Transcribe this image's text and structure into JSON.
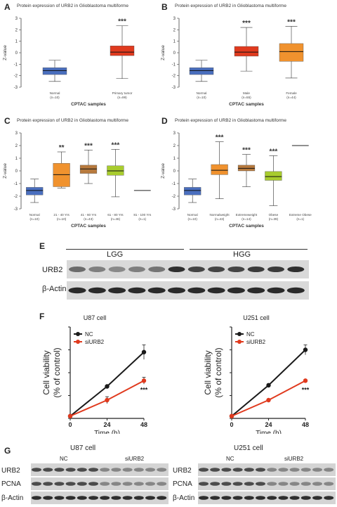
{
  "box_panels": [
    {
      "letter": "A",
      "title": "Protein expression of URB2 in Glioblastoma multiforme",
      "xlabel": "CPTAC samples",
      "ylabel": "Z-value",
      "groups": [
        {
          "label": "Normal",
          "n": "(n=10)",
          "color": "#4a6fbf",
          "q1": -1.9,
          "med": -1.55,
          "q3": -1.3,
          "lo": -2.5,
          "hi": -0.65,
          "sig": ""
        },
        {
          "label": "Primary tumor",
          "n": "(n=99)",
          "color": "#e03a1e",
          "q1": -0.25,
          "med": 0.05,
          "q3": 0.6,
          "lo": -2.25,
          "hi": 2.35,
          "sig": "***"
        }
      ]
    },
    {
      "letter": "B",
      "title": "Protein expression of URB2 in Glioblastoma multiforme",
      "xlabel": "CPTAC samples",
      "ylabel": "Z-value",
      "groups": [
        {
          "label": "Normal",
          "n": "(n=10)",
          "color": "#4a6fbf",
          "q1": -1.9,
          "med": -1.55,
          "q3": -1.3,
          "lo": -2.5,
          "hi": -0.65,
          "sig": ""
        },
        {
          "label": "Male",
          "n": "(n=55)",
          "color": "#e03a1e",
          "q1": -0.3,
          "med": 0.05,
          "q3": 0.55,
          "lo": -1.6,
          "hi": 2.2,
          "sig": "***"
        },
        {
          "label": "Female",
          "n": "(n=44)",
          "color": "#f0922e",
          "q1": -0.75,
          "med": 0.1,
          "q3": 0.8,
          "lo": -2.2,
          "hi": 2.3,
          "sig": "***"
        }
      ]
    },
    {
      "letter": "C",
      "title": "Protein expression of URB2 in Glioblastoma multiforme",
      "xlabel": "CPTAC samples",
      "ylabel": "Z-value",
      "groups": [
        {
          "label": "Normal",
          "n": "(n=10)",
          "color": "#4a6fbf",
          "q1": -1.9,
          "med": -1.55,
          "q3": -1.3,
          "lo": -2.5,
          "hi": -0.65,
          "sig": ""
        },
        {
          "label": "21 - 40 Yrs",
          "n": "(n=10)",
          "color": "#f0922e",
          "q1": -1.25,
          "med": -0.3,
          "q3": 0.6,
          "lo": -1.35,
          "hi": 1.5,
          "sig": "**"
        },
        {
          "label": "41 - 60 Yrs",
          "n": "(n=43)",
          "color": "#b87a3d",
          "q1": -0.2,
          "med": 0.15,
          "q3": 0.45,
          "lo": -1.0,
          "hi": 1.65,
          "sig": "***"
        },
        {
          "label": "61 - 80 Yrs",
          "n": "(n=46)",
          "color": "#a8cc2e",
          "q1": -0.35,
          "med": 0.0,
          "q3": 0.4,
          "lo": -2.05,
          "hi": 1.7,
          "sig": "***"
        },
        {
          "label": "81 - 100 Yrs",
          "n": "(n=1)",
          "color": "#222222",
          "q1": -1.55,
          "med": -1.55,
          "q3": -1.55,
          "lo": -1.55,
          "hi": -1.55,
          "sig": ""
        }
      ]
    },
    {
      "letter": "D",
      "title": "Protein expression of URB2 in Glioblastoma multiforme",
      "xlabel": "CPTAC samples",
      "ylabel": "Z-value",
      "groups": [
        {
          "label": "Normal",
          "n": "(n=10)",
          "color": "#4a6fbf",
          "q1": -1.9,
          "med": -1.55,
          "q3": -1.3,
          "lo": -2.5,
          "hi": -0.65,
          "sig": ""
        },
        {
          "label": "Normalweight",
          "n": "(n=43)",
          "color": "#f0922e",
          "q1": -0.3,
          "med": 0.05,
          "q3": 0.5,
          "lo": -2.2,
          "hi": 2.3,
          "sig": "***"
        },
        {
          "label": "Extremeweight",
          "n": "(n=14)",
          "color": "#b87a3d",
          "q1": 0.0,
          "med": 0.2,
          "q3": 0.45,
          "lo": -1.25,
          "hi": 1.3,
          "sig": "***"
        },
        {
          "label": "Obese",
          "n": "(n=39)",
          "color": "#a8cc2e",
          "q1": -0.75,
          "med": -0.45,
          "q3": -0.05,
          "lo": -2.75,
          "hi": 1.2,
          "sig": "***"
        },
        {
          "label": "Extreme Obese",
          "n": "(n=1)",
          "color": "#222222",
          "q1": 2.0,
          "med": 2.0,
          "q3": 2.0,
          "lo": 2.0,
          "hi": 2.0,
          "sig": ""
        }
      ]
    }
  ],
  "chart_data": [
    {
      "type": "box",
      "title": "Protein expression of URB2 in Glioblastoma multiforme",
      "xlabel": "CPTAC samples",
      "ylabel": "Z-value",
      "ylim": [
        -3,
        3
      ],
      "categories": [
        "Normal",
        "Primary tumor"
      ]
    },
    {
      "type": "box",
      "title": "Protein expression of URB2 in Glioblastoma multiforme",
      "xlabel": "CPTAC samples",
      "ylabel": "Z-value",
      "ylim": [
        -3,
        3
      ],
      "categories": [
        "Normal",
        "Male",
        "Female"
      ]
    },
    {
      "type": "box",
      "title": "Protein expression of URB2 in Glioblastoma multiforme",
      "xlabel": "CPTAC samples",
      "ylabel": "Z-value",
      "ylim": [
        -3,
        3
      ],
      "categories": [
        "Normal",
        "21 - 40 Yrs",
        "41 - 60 Yrs",
        "61 - 80 Yrs",
        "81 - 100 Yrs"
      ]
    },
    {
      "type": "box",
      "title": "Protein expression of URB2 in Glioblastoma multiforme",
      "xlabel": "CPTAC samples",
      "ylabel": "Z-value",
      "ylim": [
        -3,
        3
      ],
      "categories": [
        "Normal",
        "Normalweight",
        "Extremeweight",
        "Obese",
        "Extreme Obese"
      ]
    },
    {
      "type": "line",
      "title": "U87 cell",
      "xlabel": "Time (h)",
      "ylabel": "Cell viability (% of control)",
      "x": [
        0,
        24,
        48
      ],
      "ylim": [
        0,
        40
      ],
      "yticks": [
        0,
        10,
        20,
        30,
        40
      ],
      "xticks": [
        0,
        24,
        48
      ],
      "series": [
        {
          "name": "NC",
          "color": "#1a1a1a",
          "values": [
            1,
            14,
            29
          ],
          "err": [
            0,
            0.5,
            3.2
          ]
        },
        {
          "name": "siURB2",
          "color": "#e03a1e",
          "values": [
            1,
            8,
            16.5
          ],
          "err": [
            0,
            1.5,
            1.5
          ]
        }
      ],
      "annotation": "***"
    },
    {
      "type": "line",
      "title": "U251 cell",
      "xlabel": "Time (h)",
      "ylabel": "Cell viability (% of control)",
      "x": [
        0,
        24,
        48
      ],
      "ylim": [
        0,
        40
      ],
      "yticks": [
        0,
        10,
        20,
        30,
        40
      ],
      "xticks": [
        0,
        24,
        48
      ],
      "series": [
        {
          "name": "NC",
          "color": "#1a1a1a",
          "values": [
            1,
            14.5,
            30
          ],
          "err": [
            0,
            0.5,
            2.2
          ]
        },
        {
          "name": "siURB2",
          "color": "#e03a1e",
          "values": [
            1,
            8,
            16.5
          ],
          "err": [
            0,
            0.3,
            0.5
          ]
        }
      ],
      "annotation": "***"
    }
  ],
  "blot_e": {
    "letter": "E",
    "groups": [
      "LGG",
      "HGG"
    ],
    "rows": [
      "URB2",
      "β-Actin"
    ]
  },
  "panel_f": {
    "letter": "F"
  },
  "blot_g": {
    "letter": "G",
    "left": {
      "title": "U87 cell",
      "groups": [
        "NC",
        "siURB2"
      ],
      "rows": [
        "URB2",
        "PCNA",
        "β-Actin"
      ]
    },
    "right": {
      "title": "U251 cell",
      "groups": [
        "NC",
        "siURB2"
      ],
      "rows": [
        "URB2",
        "PCNA",
        "β-Actin"
      ]
    }
  },
  "colors": {
    "normal": "#4a6fbf",
    "tumor": "#e03a1e",
    "orange": "#f0922e",
    "brown": "#b87a3d",
    "green": "#a8cc2e",
    "nc": "#1a1a1a",
    "si": "#e03a1e"
  }
}
